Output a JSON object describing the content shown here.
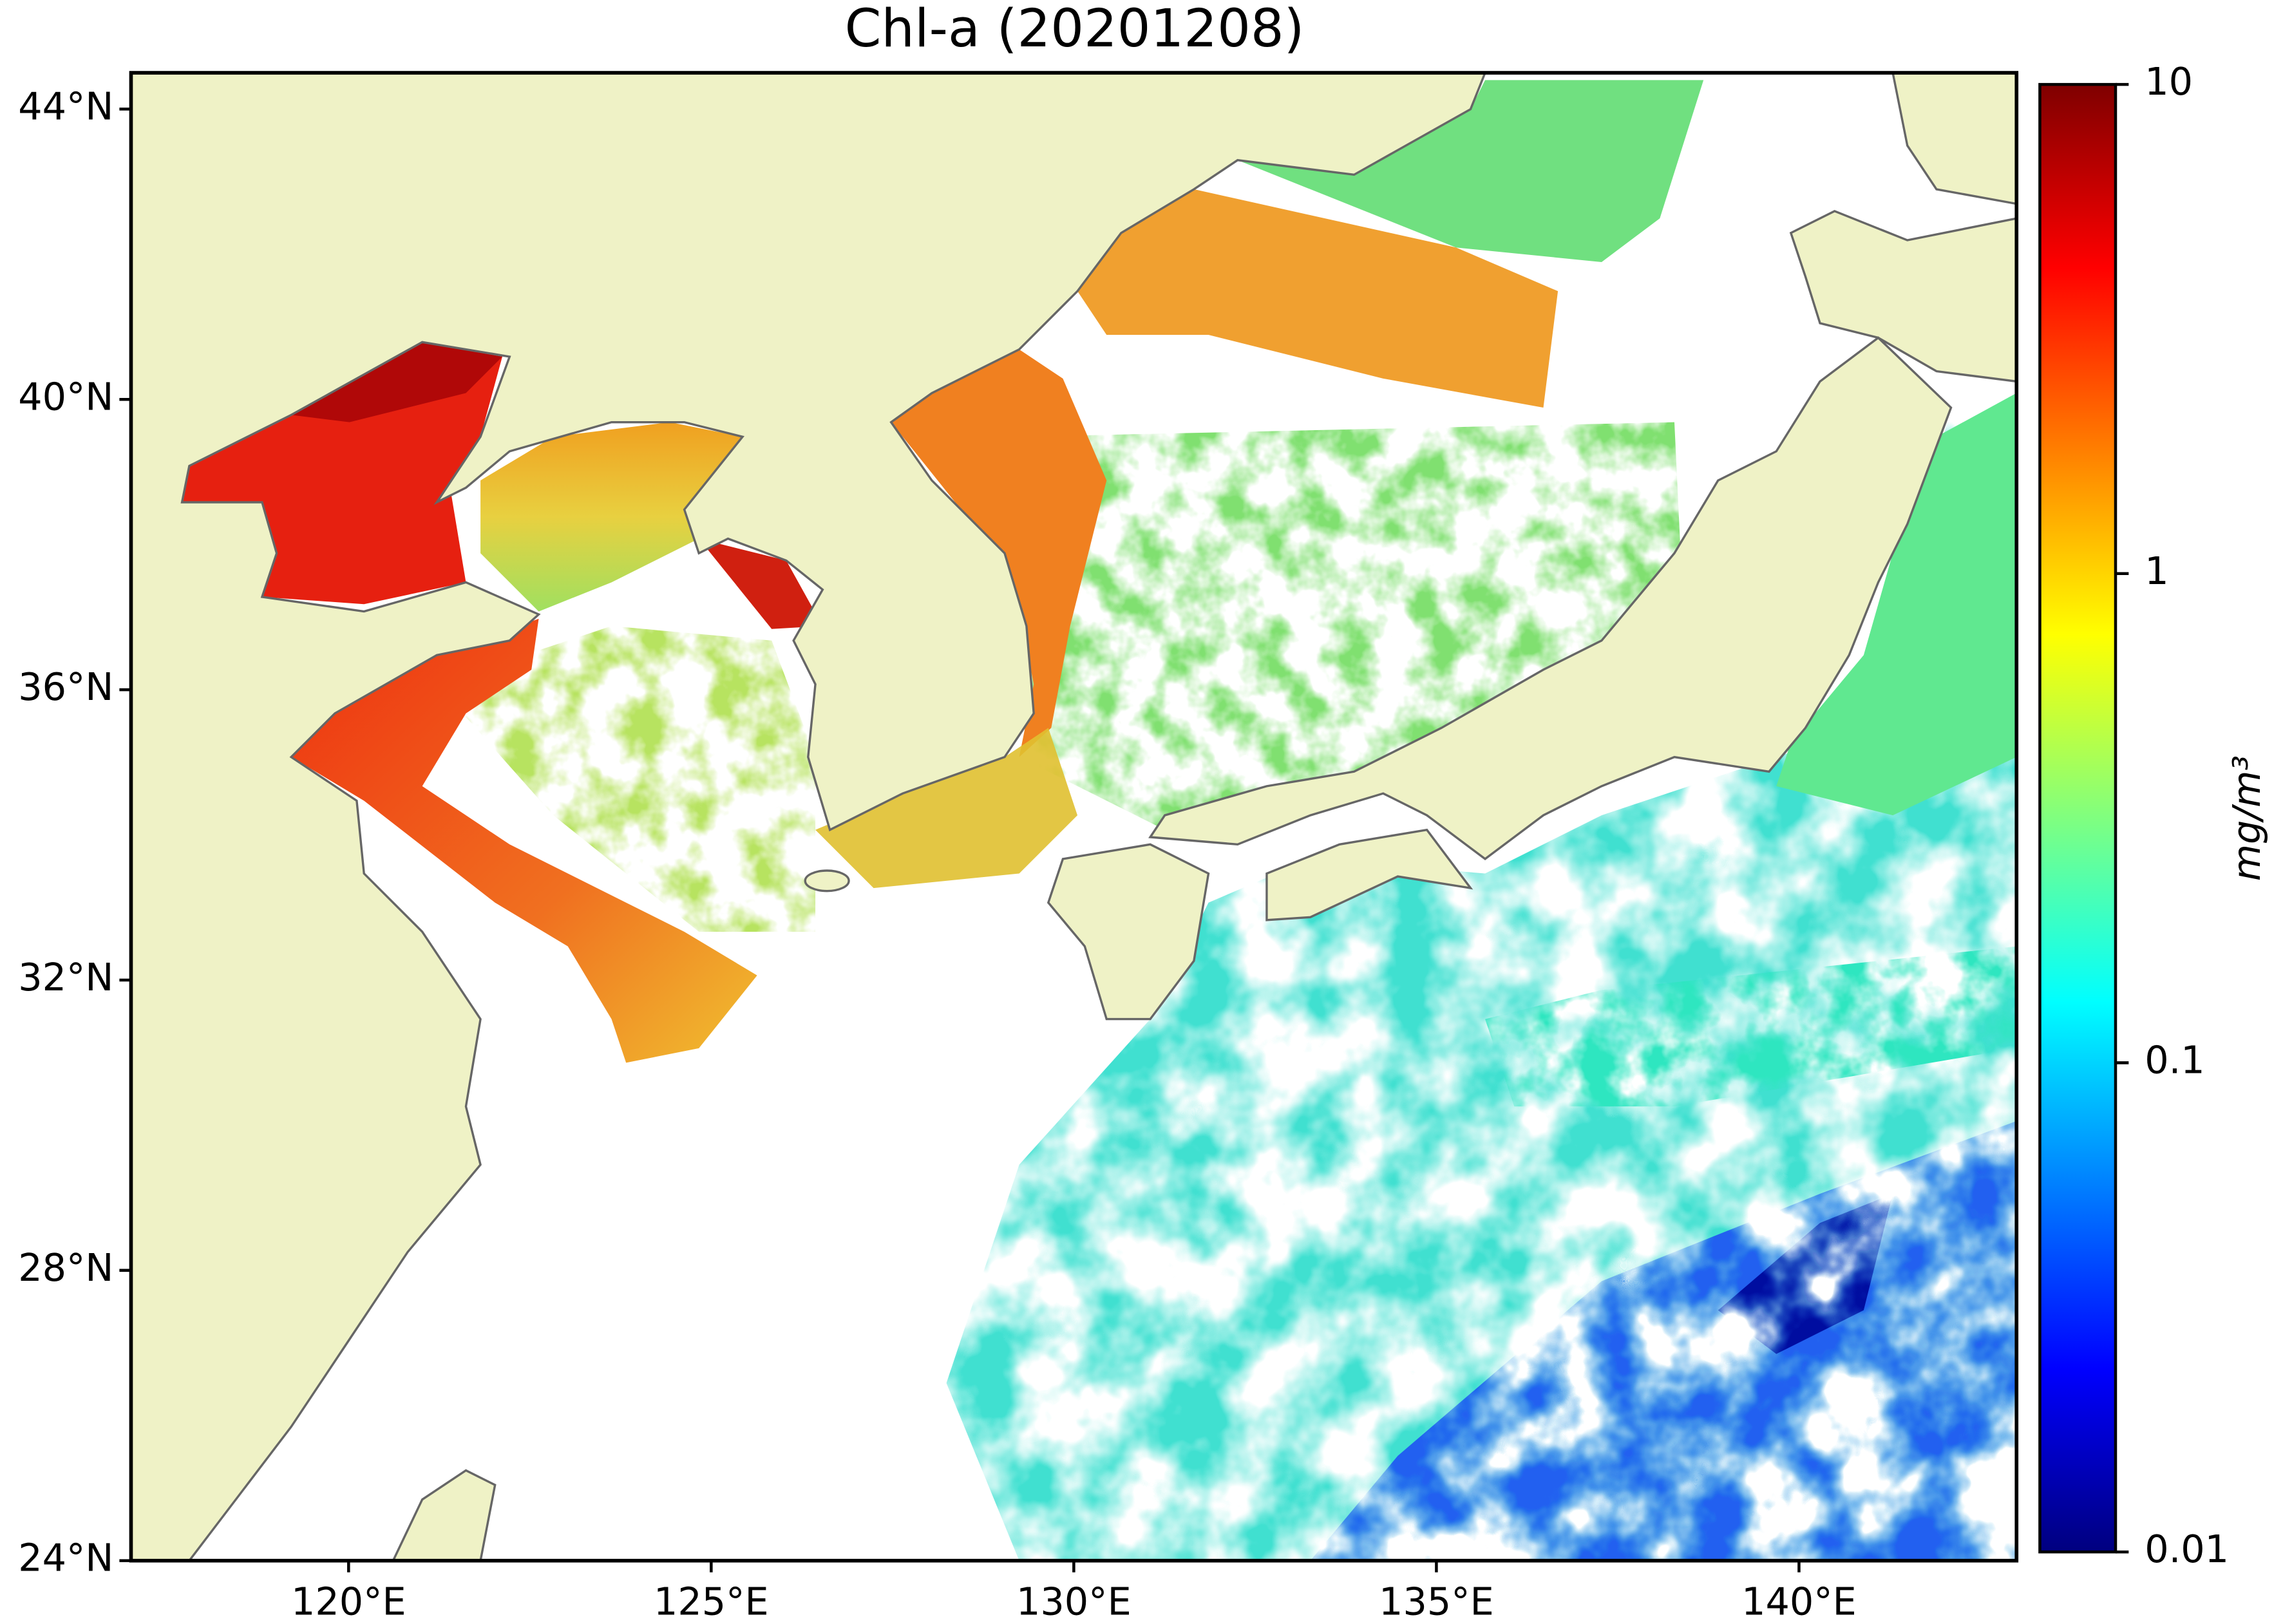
{
  "map": {
    "title": "Chl-a (20201208)",
    "xlim": [
      117,
      143
    ],
    "ylim": [
      24,
      44.5
    ],
    "lon_ticks": [
      {
        "value": 120,
        "label": "120°E"
      },
      {
        "value": 125,
        "label": "125°E"
      },
      {
        "value": 130,
        "label": "130°E"
      },
      {
        "value": 135,
        "label": "135°E"
      },
      {
        "value": 140,
        "label": "140°E"
      }
    ],
    "lat_ticks": [
      {
        "value": 24,
        "label": "24°N"
      },
      {
        "value": 28,
        "label": "28°N"
      },
      {
        "value": 32,
        "label": "32°N"
      },
      {
        "value": 36,
        "label": "36°N"
      },
      {
        "value": 40,
        "label": "40°N"
      },
      {
        "value": 44,
        "label": "44°N"
      }
    ],
    "colorbar": {
      "label": "mg/m³",
      "scale": "log",
      "colormap": "jet",
      "lim": [
        0.01,
        10
      ],
      "ticks": [
        0.01,
        0.1,
        1,
        10
      ]
    }
  }
}
